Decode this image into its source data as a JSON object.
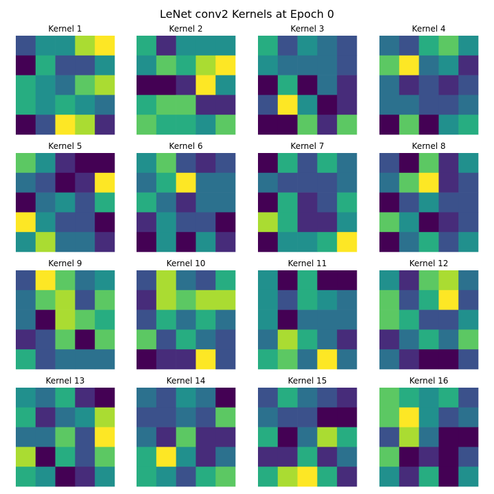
{
  "chart_data": {
    "type": "heatmap",
    "title": "LeNet conv2 Kernels at Epoch 0",
    "colormap": "viridis",
    "value_range": [
      0,
      8
    ],
    "kernels": [
      {
        "title": "Kernel 1",
        "values": [
          [
            2,
            4,
            4,
            7,
            8
          ],
          [
            0,
            5,
            2,
            2,
            4
          ],
          [
            5,
            4,
            3,
            6,
            7
          ],
          [
            5,
            4,
            5,
            4,
            3
          ],
          [
            0,
            2,
            8,
            7,
            1
          ]
        ]
      },
      {
        "title": "Kernel 2",
        "values": [
          [
            5,
            1,
            4,
            4,
            4
          ],
          [
            4,
            6,
            5,
            7,
            8
          ],
          [
            0,
            0,
            1,
            8,
            4
          ],
          [
            5,
            6,
            6,
            1,
            1
          ],
          [
            6,
            5,
            5,
            4,
            6
          ]
        ]
      },
      {
        "title": "Kernel 3",
        "values": [
          [
            5,
            2,
            4,
            3,
            2
          ],
          [
            4,
            3,
            3,
            3,
            2
          ],
          [
            0,
            5,
            0,
            3,
            1
          ],
          [
            2,
            8,
            4,
            0,
            1
          ],
          [
            0,
            0,
            6,
            1,
            6
          ]
        ]
      },
      {
        "title": "Kernel 4",
        "values": [
          [
            3,
            2,
            5,
            6,
            4
          ],
          [
            6,
            8,
            3,
            4,
            1
          ],
          [
            3,
            1,
            2,
            1,
            2
          ],
          [
            3,
            3,
            2,
            2,
            3
          ],
          [
            0,
            6,
            0,
            4,
            5
          ]
        ]
      },
      {
        "title": "Kernel 5",
        "values": [
          [
            6,
            4,
            1,
            0,
            0
          ],
          [
            3,
            2,
            0,
            1,
            8
          ],
          [
            0,
            3,
            4,
            2,
            5
          ],
          [
            8,
            4,
            2,
            2,
            0
          ],
          [
            4,
            7,
            3,
            3,
            1
          ]
        ]
      },
      {
        "title": "Kernel 6",
        "values": [
          [
            4,
            6,
            2,
            1,
            2
          ],
          [
            3,
            5,
            8,
            3,
            3
          ],
          [
            5,
            3,
            1,
            3,
            3
          ],
          [
            1,
            4,
            2,
            2,
            0
          ],
          [
            0,
            4,
            0,
            4,
            1
          ]
        ]
      },
      {
        "title": "Kernel 7",
        "values": [
          [
            0,
            5,
            2,
            5,
            3
          ],
          [
            3,
            2,
            2,
            2,
            3
          ],
          [
            0,
            5,
            1,
            2,
            5
          ],
          [
            7,
            5,
            1,
            1,
            4
          ],
          [
            0,
            4,
            4,
            5,
            8
          ]
        ]
      },
      {
        "title": "Kernel 8",
        "values": [
          [
            2,
            0,
            6,
            1,
            4
          ],
          [
            3,
            6,
            8,
            1,
            2
          ],
          [
            0,
            2,
            4,
            2,
            2
          ],
          [
            6,
            4,
            0,
            1,
            2
          ],
          [
            0,
            3,
            5,
            2,
            4
          ]
        ]
      },
      {
        "title": "Kernel 9",
        "values": [
          [
            2,
            8,
            6,
            3,
            4
          ],
          [
            3,
            6,
            7,
            2,
            6
          ],
          [
            3,
            0,
            7,
            6,
            5
          ],
          [
            1,
            2,
            6,
            0,
            6
          ],
          [
            5,
            2,
            3,
            3,
            3
          ]
        ]
      },
      {
        "title": "Kernel 10",
        "values": [
          [
            2,
            7,
            3,
            2,
            5
          ],
          [
            1,
            7,
            6,
            7,
            7
          ],
          [
            2,
            5,
            3,
            5,
            3
          ],
          [
            6,
            2,
            5,
            3,
            2
          ],
          [
            0,
            1,
            1,
            8,
            2
          ]
        ]
      },
      {
        "title": "Kernel 11",
        "values": [
          [
            4,
            0,
            5,
            0,
            0
          ],
          [
            4,
            2,
            5,
            4,
            3
          ],
          [
            4,
            0,
            3,
            3,
            3
          ],
          [
            3,
            7,
            5,
            3,
            1
          ],
          [
            5,
            6,
            3,
            8,
            3
          ]
        ]
      },
      {
        "title": "Kernel 12",
        "values": [
          [
            4,
            1,
            6,
            7,
            3
          ],
          [
            6,
            2,
            5,
            8,
            2
          ],
          [
            6,
            5,
            2,
            2,
            4
          ],
          [
            1,
            3,
            5,
            3,
            6
          ],
          [
            3,
            1,
            0,
            0,
            2
          ]
        ]
      },
      {
        "title": "Kernel 13",
        "values": [
          [
            4,
            3,
            5,
            1,
            0
          ],
          [
            5,
            1,
            3,
            4,
            7
          ],
          [
            3,
            3,
            6,
            2,
            8
          ],
          [
            7,
            0,
            5,
            2,
            6
          ],
          [
            5,
            4,
            0,
            1,
            4
          ]
        ]
      },
      {
        "title": "Kernel 14",
        "values": [
          [
            3,
            2,
            4,
            3,
            0
          ],
          [
            2,
            2,
            3,
            2,
            6
          ],
          [
            3,
            1,
            6,
            1,
            1
          ],
          [
            5,
            8,
            4,
            1,
            3
          ],
          [
            5,
            4,
            2,
            5,
            6
          ]
        ]
      },
      {
        "title": "Kernel 15",
        "values": [
          [
            2,
            5,
            3,
            2,
            1
          ],
          [
            3,
            2,
            2,
            0,
            0
          ],
          [
            5,
            0,
            3,
            7,
            5
          ],
          [
            1,
            1,
            5,
            1,
            3
          ],
          [
            5,
            7,
            8,
            5,
            1
          ]
        ]
      },
      {
        "title": "Kernel 16",
        "values": [
          [
            6,
            5,
            4,
            5,
            2
          ],
          [
            6,
            8,
            4,
            2,
            3
          ],
          [
            2,
            7,
            3,
            0,
            0
          ],
          [
            6,
            0,
            1,
            0,
            2
          ],
          [
            4,
            1,
            5,
            0,
            4
          ]
        ]
      }
    ]
  }
}
